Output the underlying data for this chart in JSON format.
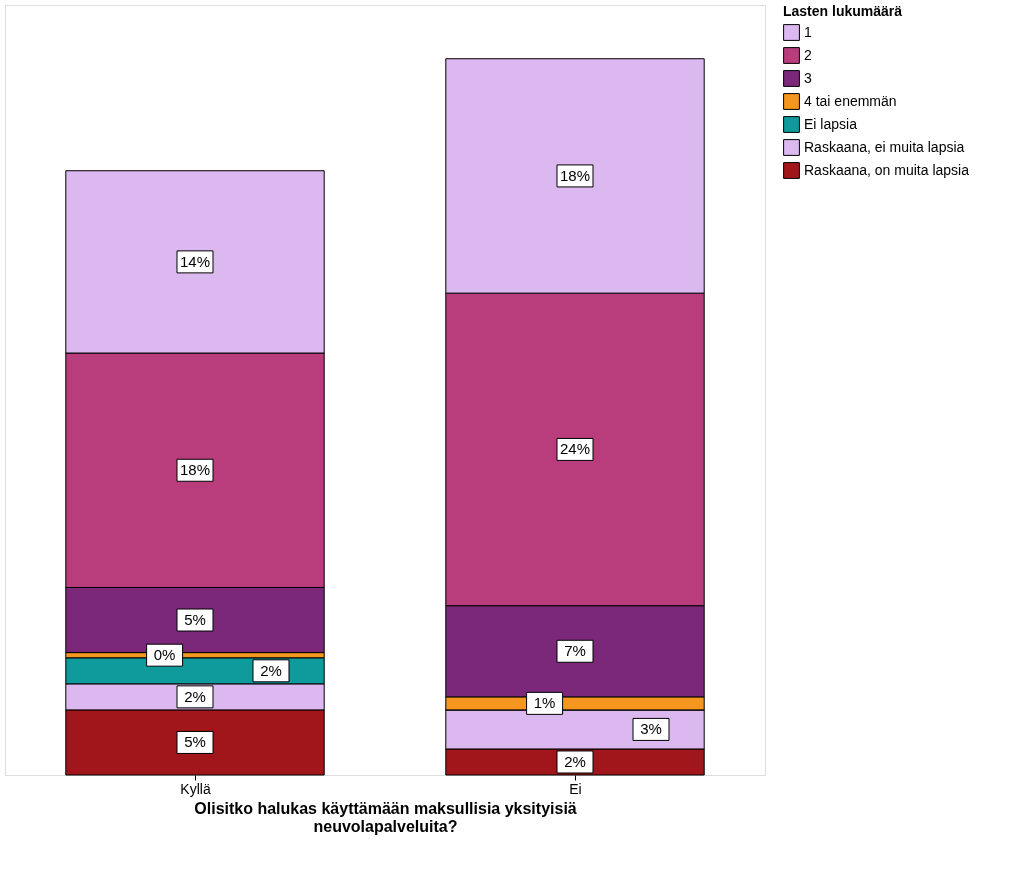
{
  "chart_data": {
    "type": "bar",
    "stacked": true,
    "xlabel": "Olisitko halukas käyttämään maksullisia yksityisiä neuvolapalveluita?",
    "legend_title": "Lasten lukumäärä",
    "legend": "top right",
    "categories": [
      "Kyllä",
      "Ei"
    ],
    "series": [
      {
        "name": "Raskaana, on muita lapsia",
        "color": "#a0161a",
        "values": [
          5,
          2
        ],
        "value_labels": [
          "5%",
          "2%"
        ]
      },
      {
        "name": "Raskaana, ei muita lapsia",
        "color": "#dcb8f0",
        "values": [
          2,
          3
        ],
        "value_labels": [
          "2%",
          "3%"
        ]
      },
      {
        "name": "Ei lapsia",
        "color": "#0f9b9b",
        "values": [
          2,
          0
        ],
        "value_labels": [
          "2%",
          null
        ]
      },
      {
        "name": "4 tai enemmän",
        "color": "#f5961e",
        "values": [
          0.4,
          1
        ],
        "value_labels": [
          "0%",
          "1%"
        ]
      },
      {
        "name": "3",
        "color": "#7b287a",
        "values": [
          5,
          7
        ],
        "value_labels": [
          "5%",
          "7%"
        ]
      },
      {
        "name": "2",
        "color": "#b93c7c",
        "values": [
          18,
          24
        ],
        "value_labels": [
          "18%",
          "24%"
        ]
      },
      {
        "name": "1",
        "color": "#dcb8f0",
        "values": [
          14,
          18
        ],
        "value_labels": [
          "14%",
          "18%"
        ]
      }
    ]
  }
}
